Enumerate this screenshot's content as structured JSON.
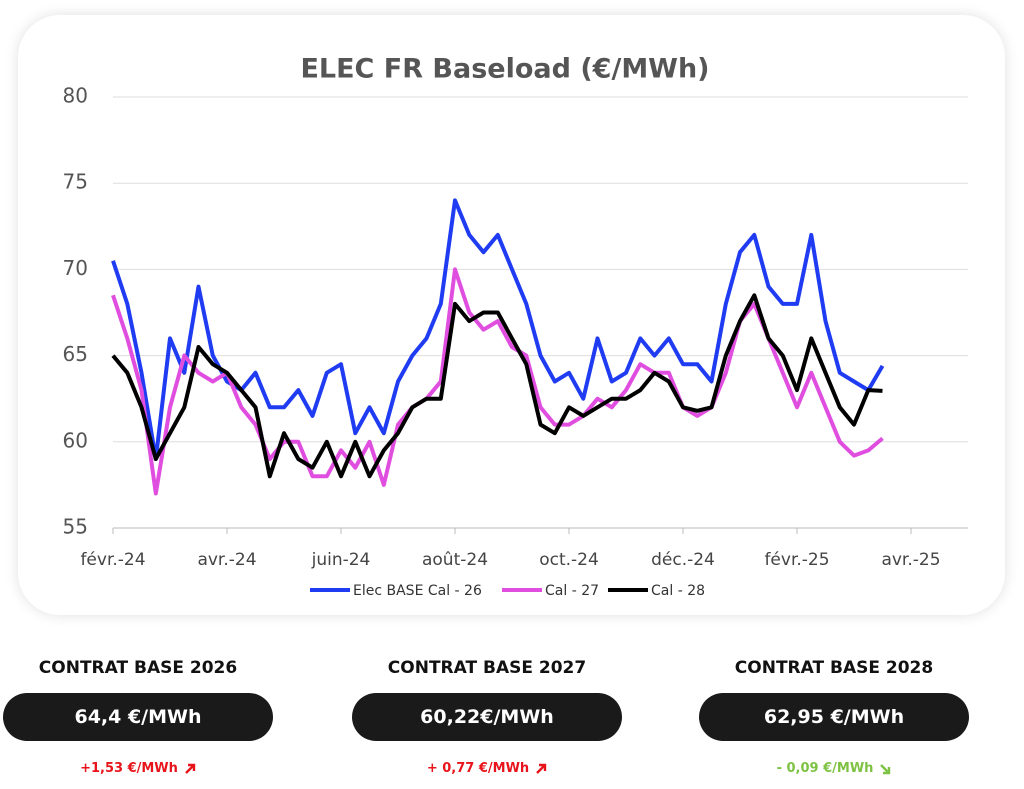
{
  "chart_data": {
    "type": "line",
    "title": "ELEC FR Baseload (€/MWh)",
    "categories": [
      "févr.-24",
      null,
      null,
      null,
      null,
      null,
      null,
      null,
      "avr.-24",
      null,
      null,
      null,
      null,
      null,
      null,
      null,
      "juin-24",
      null,
      null,
      null,
      null,
      null,
      null,
      null,
      "août-24",
      null,
      null,
      null,
      null,
      null,
      null,
      null,
      "oct.-24",
      null,
      null,
      null,
      null,
      null,
      null,
      null,
      "déc.-24",
      null,
      null,
      null,
      null,
      null,
      null,
      null,
      "févr.-25",
      null,
      null,
      null,
      null,
      null,
      null,
      null,
      "avr.-25"
    ],
    "series": [
      {
        "name": "Elec BASE Cal - 26",
        "color": "#1f3cf2",
        "values": [
          70.5,
          68,
          64,
          59,
          66,
          64,
          69,
          65,
          63.5,
          63,
          64,
          62,
          62,
          63,
          61.5,
          64,
          64.5,
          60.5,
          62,
          60.5,
          63.5,
          65,
          66,
          68,
          74,
          72,
          71,
          72,
          70,
          68,
          65,
          63.5,
          64,
          62.5,
          66,
          63.5,
          64,
          66,
          65,
          66,
          64.5,
          64.5,
          63.5,
          68,
          71,
          72,
          69,
          68,
          68,
          72,
          67,
          64,
          63.5,
          63,
          64.4,
          null,
          null
        ]
      },
      {
        "name": "Cal - 27",
        "color": "#e04ee0",
        "values": [
          68.5,
          66,
          63,
          57,
          62,
          65,
          64,
          63.5,
          64,
          62,
          61,
          59,
          60,
          60,
          58,
          58,
          59.5,
          58.5,
          60,
          57.5,
          61,
          62,
          62.5,
          63.5,
          70,
          67.5,
          66.5,
          67,
          65.5,
          65,
          62,
          61,
          61,
          61.5,
          62.5,
          62,
          63,
          64.5,
          64,
          64,
          62,
          61.5,
          62,
          64,
          67,
          68,
          66,
          64,
          62,
          64,
          62,
          60,
          59.2,
          59.5,
          60.2,
          null,
          null
        ]
      },
      {
        "name": "Cal - 28",
        "color": "#000000",
        "values": [
          65,
          64,
          62,
          59,
          60.5,
          62,
          65.5,
          64.5,
          64,
          63,
          62,
          58,
          60.5,
          59,
          58.5,
          60,
          58,
          60,
          58,
          59.5,
          60.5,
          62,
          62.5,
          62.5,
          68,
          67,
          67.5,
          67.5,
          66,
          64.5,
          61,
          60.5,
          62,
          61.5,
          62,
          62.5,
          62.5,
          63,
          64,
          63.5,
          62,
          61.8,
          62,
          65,
          67,
          68.5,
          66,
          65,
          63,
          66,
          64,
          62,
          61,
          63,
          62.95,
          null,
          null
        ]
      }
    ],
    "ylim": [
      55,
      80
    ],
    "yticks": [
      55,
      60,
      65,
      70,
      75,
      80
    ],
    "grid": true,
    "legend": "bottom"
  },
  "cards": [
    {
      "title": "CONTRAT BASE 2026",
      "price": "64,4 €/MWh",
      "change": "+1,53  €/MWh",
      "color": "#e8141b"
    },
    {
      "title": "CONTRAT BASE 2027",
      "price": "60,22€/MWh",
      "change": "+ 0,77 €/MWh",
      "color": "#e8141b"
    },
    {
      "title": "CONTRAT BASE 2028",
      "price": "62,95 €/MWh",
      "change": "- 0,09 €/MWh",
      "color": "#7dc242"
    }
  ]
}
